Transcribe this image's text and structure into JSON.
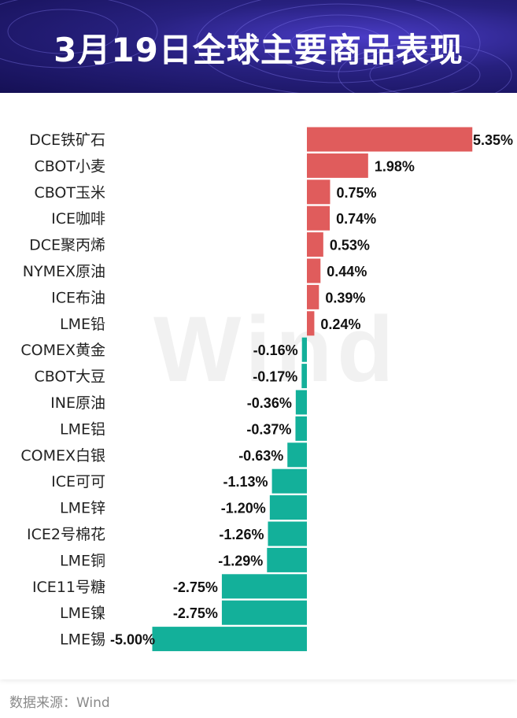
{
  "title": "3月19日全球主要商品表现",
  "watermark": "Wind",
  "source": "数据来源：Wind",
  "colors": {
    "positive": "#e05c5c",
    "negative": "#13b09a",
    "header": "#27207e"
  },
  "chart_data": {
    "type": "bar",
    "orientation": "horizontal",
    "unit": "%",
    "categories": [
      "DCE铁矿石",
      "CBOT小麦",
      "CBOT玉米",
      "ICE咖啡",
      "DCE聚丙烯",
      "NYMEX原油",
      "ICE布油",
      "LME铅",
      "COMEX黄金",
      "CBOT大豆",
      "INE原油",
      "LME铝",
      "COMEX白银",
      "ICE可可",
      "LME锌",
      "ICE2号棉花",
      "LME铜",
      "ICE11号糖",
      "LME镍",
      "LME锡"
    ],
    "values": [
      5.35,
      1.98,
      0.75,
      0.74,
      0.53,
      0.44,
      0.39,
      0.24,
      -0.16,
      -0.17,
      -0.36,
      -0.37,
      -0.63,
      -1.13,
      -1.2,
      -1.26,
      -1.29,
      -2.75,
      -2.75,
      -5.0
    ],
    "labels": [
      "5.35%",
      "1.98%",
      "0.75%",
      "0.74%",
      "0.53%",
      "0.44%",
      "0.39%",
      "0.24%",
      "-0.16%",
      "-0.17%",
      "-0.36%",
      "-0.37%",
      "-0.63%",
      "-1.13%",
      "-1.20%",
      "-1.26%",
      "-1.29%",
      "-2.75%",
      "-2.75%",
      "-5.00%"
    ]
  }
}
